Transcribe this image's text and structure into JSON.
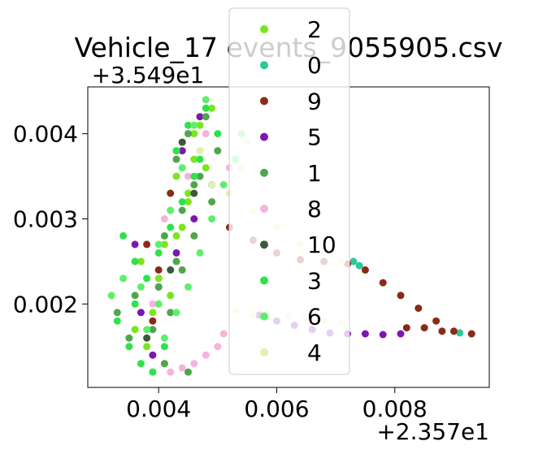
{
  "chart_data": {
    "type": "scatter",
    "title": "Vehicle_17 events_9055905.csv",
    "xlabel": "",
    "ylabel": "",
    "x_offset_label": "+2.357e1",
    "y_offset_label": "+3.549e1",
    "xlim": [
      0.0028,
      0.0096
    ],
    "ylim": [
      0.00102,
      0.00455
    ],
    "x_ticks": [
      {
        "value": 0.004,
        "label": "0.004"
      },
      {
        "value": 0.006,
        "label": "0.006"
      },
      {
        "value": 0.008,
        "label": "0.008"
      }
    ],
    "y_ticks": [
      {
        "value": 0.002,
        "label": "0.002"
      },
      {
        "value": 0.003,
        "label": "0.003"
      },
      {
        "value": 0.004,
        "label": "0.004"
      }
    ],
    "grid": false,
    "legend": {
      "placement": "upper-center",
      "overlaps_plot": true
    },
    "series": [
      {
        "name": "2",
        "color": "#7be51f",
        "points": [
          [
            0.0041,
            0.0013
          ],
          [
            0.0038,
            0.0015
          ],
          [
            0.0036,
            0.0017
          ],
          [
            0.0039,
            0.0019
          ],
          [
            0.0042,
            0.0021
          ],
          [
            0.004,
            0.0023
          ],
          [
            0.0037,
            0.0025
          ],
          [
            0.0041,
            0.0027
          ],
          [
            0.0044,
            0.0029
          ],
          [
            0.0042,
            0.0031
          ],
          [
            0.0045,
            0.0033
          ],
          [
            0.0043,
            0.0035
          ],
          [
            0.0046,
            0.0037
          ],
          [
            0.0044,
            0.0039
          ],
          [
            0.0047,
            0.0041
          ],
          [
            0.0049,
            0.0043
          ],
          [
            0.0046,
            0.004
          ],
          [
            0.0048,
            0.0036
          ],
          [
            0.0045,
            0.0032
          ],
          [
            0.0043,
            0.0028
          ]
        ]
      },
      {
        "name": "0",
        "color": "#2cc79b",
        "points": [
          [
            0.0093,
            0.00165
          ],
          [
            0.0091,
            0.00166
          ],
          [
            0.0074,
            0.00245
          ],
          [
            0.0073,
            0.0025
          ]
        ]
      },
      {
        "name": "9",
        "color": "#8b2a18",
        "points": [
          [
            0.0052,
            0.0029
          ],
          [
            0.0056,
            0.00275
          ],
          [
            0.006,
            0.0026
          ],
          [
            0.0064,
            0.00252
          ],
          [
            0.0068,
            0.0025
          ],
          [
            0.0072,
            0.00247
          ],
          [
            0.0075,
            0.0024
          ],
          [
            0.0078,
            0.00225
          ],
          [
            0.0081,
            0.0021
          ],
          [
            0.0084,
            0.00195
          ],
          [
            0.0087,
            0.0018
          ],
          [
            0.009,
            0.00168
          ],
          [
            0.0093,
            0.00165
          ],
          [
            0.0088,
            0.00168
          ],
          [
            0.0085,
            0.00172
          ],
          [
            0.0082,
            0.00172
          ],
          [
            0.004,
            0.0024
          ],
          [
            0.0038,
            0.0027
          ],
          [
            0.0042,
            0.0033
          ],
          [
            0.0039,
            0.0018
          ]
        ]
      },
      {
        "name": "5",
        "color": "#7b18b0",
        "points": [
          [
            0.0081,
            0.00165
          ],
          [
            0.0078,
            0.00164
          ],
          [
            0.0075,
            0.00165
          ],
          [
            0.0072,
            0.00165
          ],
          [
            0.0069,
            0.00166
          ],
          [
            0.0066,
            0.0017
          ],
          [
            0.0063,
            0.00175
          ],
          [
            0.006,
            0.0018
          ],
          [
            0.0057,
            0.00187
          ],
          [
            0.0037,
            0.0019
          ],
          [
            0.004,
            0.0022
          ],
          [
            0.0043,
            0.0026
          ],
          [
            0.0046,
            0.003
          ],
          [
            0.0049,
            0.0034
          ],
          [
            0.0044,
            0.0038
          ],
          [
            0.0047,
            0.0042
          ],
          [
            0.0036,
            0.0027
          ],
          [
            0.0039,
            0.0014
          ]
        ]
      },
      {
        "name": "1",
        "color": "#4fa64a",
        "points": [
          [
            0.0035,
            0.0016
          ],
          [
            0.0033,
            0.0019
          ],
          [
            0.0036,
            0.0021
          ],
          [
            0.0039,
            0.0017
          ],
          [
            0.0042,
            0.0019
          ],
          [
            0.004,
            0.0022
          ],
          [
            0.0043,
            0.0025
          ],
          [
            0.0041,
            0.0028
          ],
          [
            0.0044,
            0.0031
          ],
          [
            0.0046,
            0.0034
          ],
          [
            0.0043,
            0.0037
          ],
          [
            0.0045,
            0.004
          ],
          [
            0.0048,
            0.0042
          ],
          [
            0.005,
            0.0038
          ],
          [
            0.0047,
            0.0035
          ],
          [
            0.0049,
            0.0032
          ],
          [
            0.0046,
            0.0028
          ],
          [
            0.0044,
            0.0024
          ],
          [
            0.0041,
            0.0013
          ],
          [
            0.0045,
            0.0012
          ]
        ]
      },
      {
        "name": "8",
        "color": "#f6b3dd",
        "points": [
          [
            0.0042,
            0.0012
          ],
          [
            0.0044,
            0.00125
          ],
          [
            0.0046,
            0.0013
          ],
          [
            0.0048,
            0.0014
          ],
          [
            0.005,
            0.0015
          ],
          [
            0.0051,
            0.00165
          ],
          [
            0.0043,
            0.0038
          ],
          [
            0.0045,
            0.0035
          ],
          [
            0.0041,
            0.003
          ],
          [
            0.0048,
            0.004
          ],
          [
            0.0039,
            0.002
          ],
          [
            0.0052,
            0.0036
          ]
        ]
      },
      {
        "name": "10",
        "color": "#3a5a3a",
        "points": [
          [
            0.0038,
            0.0016
          ],
          [
            0.0042,
            0.0024
          ],
          [
            0.0046,
            0.0033
          ],
          [
            0.0044,
            0.0039
          ]
        ]
      },
      {
        "name": "3",
        "color": "#2ee34a",
        "points": [
          [
            0.0037,
            0.0013
          ],
          [
            0.0035,
            0.0015
          ],
          [
            0.0033,
            0.0018
          ],
          [
            0.0036,
            0.002
          ],
          [
            0.0038,
            0.0023
          ],
          [
            0.004,
            0.0026
          ],
          [
            0.0042,
            0.0029
          ],
          [
            0.0044,
            0.0032
          ],
          [
            0.0046,
            0.0035
          ],
          [
            0.0043,
            0.0038
          ],
          [
            0.0045,
            0.0041
          ],
          [
            0.0048,
            0.0043
          ],
          [
            0.005,
            0.004
          ],
          [
            0.0047,
            0.0037
          ],
          [
            0.0039,
            0.0012
          ],
          [
            0.0041,
            0.0015
          ],
          [
            0.0036,
            0.0025
          ],
          [
            0.0034,
            0.0028
          ]
        ]
      },
      {
        "name": "6",
        "color": "#5cf06a",
        "points": [
          [
            0.0032,
            0.0021
          ],
          [
            0.0034,
            0.0023
          ],
          [
            0.0037,
            0.0022
          ],
          [
            0.004,
            0.002
          ],
          [
            0.0038,
            0.0017
          ],
          [
            0.0041,
            0.0016
          ],
          [
            0.0043,
            0.0019
          ],
          [
            0.0045,
            0.0022
          ],
          [
            0.0047,
            0.0026
          ],
          [
            0.0049,
            0.003
          ],
          [
            0.0051,
            0.0034
          ],
          [
            0.0053,
            0.0037
          ],
          [
            0.0054,
            0.004
          ],
          [
            0.0048,
            0.0044
          ],
          [
            0.0046,
            0.0041
          ],
          [
            0.0044,
            0.0036
          ],
          [
            0.0042,
            0.0031
          ],
          [
            0.004,
            0.0027
          ]
        ]
      },
      {
        "name": "4",
        "color": "#def2b0",
        "points": [
          [
            0.0055,
            0.0039
          ],
          [
            0.0054,
            0.0036
          ],
          [
            0.0052,
            0.0033
          ],
          [
            0.0056,
            0.0031
          ],
          [
            0.006,
            0.0029
          ],
          [
            0.0064,
            0.0027
          ],
          [
            0.0068,
            0.0026
          ],
          [
            0.0071,
            0.0025
          ],
          [
            0.0053,
            0.00192
          ],
          [
            0.0056,
            0.00188
          ],
          [
            0.0059,
            0.00185
          ],
          [
            0.0062,
            0.00185
          ],
          [
            0.0065,
            0.00184
          ],
          [
            0.0068,
            0.0018
          ],
          [
            0.0071,
            0.00178
          ],
          [
            0.0047,
            0.0038
          ],
          [
            0.0049,
            0.0034
          ]
        ]
      }
    ]
  }
}
